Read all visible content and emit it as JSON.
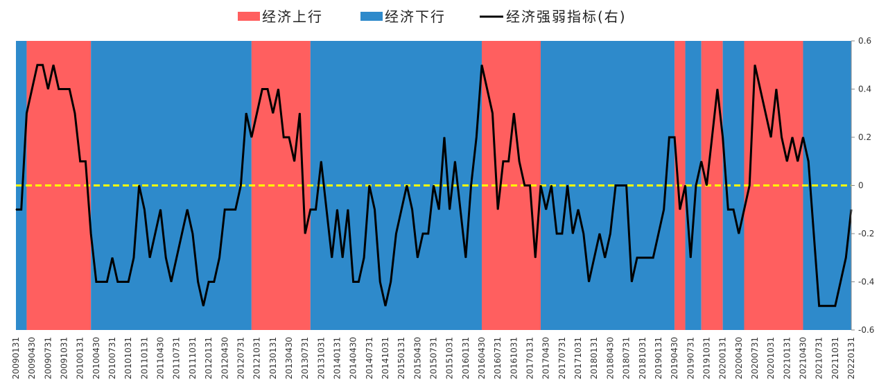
{
  "chart_data": {
    "type": "line",
    "legend": {
      "placement": "top-center",
      "items": [
        {
          "label": "经济上行",
          "kind": "band",
          "color": "#FF5F5F"
        },
        {
          "label": "经济下行",
          "kind": "band",
          "color": "#2E8ACB"
        },
        {
          "label": "经济强弱指标(右)",
          "kind": "line",
          "color": "#000000"
        }
      ]
    },
    "y_axis": {
      "side": "right",
      "ylim": [
        -0.6,
        0.6
      ],
      "ticks": [
        "-0.6",
        "-0.4",
        "-0.2",
        "0",
        "0.2",
        "0.4",
        "0.6"
      ],
      "tick_values": [
        -0.6,
        -0.4,
        -0.2,
        0,
        0.2,
        0.4,
        0.6
      ]
    },
    "reference_line": {
      "y": 0,
      "color": "#FFFF00",
      "style": "dashed"
    },
    "x_tick_labels": [
      "20090131",
      "20090430",
      "20090731",
      "20091031",
      "20100131",
      "20100430",
      "20100731",
      "20101031",
      "20110131",
      "20110430",
      "20110731",
      "20111031",
      "20120131",
      "20120430",
      "20120731",
      "20121031",
      "20130131",
      "20130430",
      "20130731",
      "20131031",
      "20140131",
      "20140430",
      "20140731",
      "20141031",
      "20150131",
      "20150430",
      "20150731",
      "20151031",
      "20160131",
      "20160430",
      "20160731",
      "20161031",
      "20170131",
      "20170430",
      "20170731",
      "20171031",
      "20180131",
      "20180430",
      "20180731",
      "20181031",
      "20190131",
      "20190430",
      "20190731",
      "20191031",
      "20200131",
      "20200430",
      "20200731",
      "20201031",
      "20210131",
      "20210430",
      "20210731",
      "20211031",
      "20220131"
    ],
    "x_start": "2009-01",
    "x_end": "2022-01",
    "bands": [
      {
        "start": "2009-01",
        "end": "2009-03",
        "state": "down"
      },
      {
        "start": "2009-03",
        "end": "2010-03",
        "state": "up"
      },
      {
        "start": "2010-03",
        "end": "2012-09",
        "state": "down"
      },
      {
        "start": "2012-09",
        "end": "2013-08",
        "state": "up"
      },
      {
        "start": "2013-08",
        "end": "2016-04",
        "state": "down"
      },
      {
        "start": "2016-04",
        "end": "2017-03",
        "state": "up"
      },
      {
        "start": "2017-03",
        "end": "2019-04",
        "state": "down"
      },
      {
        "start": "2019-04",
        "end": "2019-06",
        "state": "up"
      },
      {
        "start": "2019-06",
        "end": "2019-09",
        "state": "down"
      },
      {
        "start": "2019-09",
        "end": "2020-01",
        "state": "up"
      },
      {
        "start": "2020-01",
        "end": "2020-05",
        "state": "down"
      },
      {
        "start": "2020-05",
        "end": "2021-04",
        "state": "up"
      },
      {
        "start": "2021-04",
        "end": "2022-01",
        "state": "down"
      }
    ],
    "series": [
      {
        "name": "经济强弱指标(右)",
        "color": "#000000",
        "points": [
          [
            "2009-01",
            -0.1
          ],
          [
            "2009-02",
            -0.1
          ],
          [
            "2009-03",
            0.3
          ],
          [
            "2009-04",
            0.4
          ],
          [
            "2009-05",
            0.5
          ],
          [
            "2009-06",
            0.5
          ],
          [
            "2009-07",
            0.4
          ],
          [
            "2009-08",
            0.5
          ],
          [
            "2009-09",
            0.4
          ],
          [
            "2009-10",
            0.4
          ],
          [
            "2009-11",
            0.4
          ],
          [
            "2009-12",
            0.3
          ],
          [
            "2010-01",
            0.1
          ],
          [
            "2010-02",
            0.1
          ],
          [
            "2010-03",
            -0.2
          ],
          [
            "2010-04",
            -0.4
          ],
          [
            "2010-05",
            -0.4
          ],
          [
            "2010-06",
            -0.4
          ],
          [
            "2010-07",
            -0.3
          ],
          [
            "2010-08",
            -0.4
          ],
          [
            "2010-09",
            -0.4
          ],
          [
            "2010-10",
            -0.4
          ],
          [
            "2010-11",
            -0.3
          ],
          [
            "2010-12",
            0.0
          ],
          [
            "2011-01",
            -0.1
          ],
          [
            "2011-02",
            -0.3
          ],
          [
            "2011-03",
            -0.2
          ],
          [
            "2011-04",
            -0.1
          ],
          [
            "2011-05",
            -0.3
          ],
          [
            "2011-06",
            -0.4
          ],
          [
            "2011-07",
            -0.3
          ],
          [
            "2011-08",
            -0.2
          ],
          [
            "2011-09",
            -0.1
          ],
          [
            "2011-10",
            -0.2
          ],
          [
            "2011-11",
            -0.4
          ],
          [
            "2011-12",
            -0.5
          ],
          [
            "2012-01",
            -0.4
          ],
          [
            "2012-02",
            -0.4
          ],
          [
            "2012-03",
            -0.3
          ],
          [
            "2012-04",
            -0.1
          ],
          [
            "2012-05",
            -0.1
          ],
          [
            "2012-06",
            -0.1
          ],
          [
            "2012-07",
            0.0
          ],
          [
            "2012-08",
            0.3
          ],
          [
            "2012-09",
            0.2
          ],
          [
            "2012-10",
            0.3
          ],
          [
            "2012-11",
            0.4
          ],
          [
            "2012-12",
            0.4
          ],
          [
            "2013-01",
            0.3
          ],
          [
            "2013-02",
            0.4
          ],
          [
            "2013-03",
            0.2
          ],
          [
            "2013-04",
            0.2
          ],
          [
            "2013-05",
            0.1
          ],
          [
            "2013-06",
            0.3
          ],
          [
            "2013-07",
            -0.2
          ],
          [
            "2013-08",
            -0.1
          ],
          [
            "2013-09",
            -0.1
          ],
          [
            "2013-10",
            0.1
          ],
          [
            "2013-11",
            -0.1
          ],
          [
            "2013-12",
            -0.3
          ],
          [
            "2014-01",
            -0.1
          ],
          [
            "2014-02",
            -0.3
          ],
          [
            "2014-03",
            -0.1
          ],
          [
            "2014-04",
            -0.4
          ],
          [
            "2014-05",
            -0.4
          ],
          [
            "2014-06",
            -0.3
          ],
          [
            "2014-07",
            0.0
          ],
          [
            "2014-08",
            -0.1
          ],
          [
            "2014-09",
            -0.4
          ],
          [
            "2014-10",
            -0.5
          ],
          [
            "2014-11",
            -0.4
          ],
          [
            "2014-12",
            -0.2
          ],
          [
            "2015-01",
            -0.1
          ],
          [
            "2015-02",
            0.0
          ],
          [
            "2015-03",
            -0.1
          ],
          [
            "2015-04",
            -0.3
          ],
          [
            "2015-05",
            -0.2
          ],
          [
            "2015-06",
            -0.2
          ],
          [
            "2015-07",
            0.0
          ],
          [
            "2015-08",
            -0.1
          ],
          [
            "2015-09",
            0.2
          ],
          [
            "2015-10",
            -0.1
          ],
          [
            "2015-11",
            0.1
          ],
          [
            "2015-12",
            -0.1
          ],
          [
            "2016-01",
            -0.3
          ],
          [
            "2016-02",
            0.0
          ],
          [
            "2016-03",
            0.2
          ],
          [
            "2016-04",
            0.5
          ],
          [
            "2016-05",
            0.4
          ],
          [
            "2016-06",
            0.3
          ],
          [
            "2016-07",
            -0.1
          ],
          [
            "2016-08",
            0.1
          ],
          [
            "2016-09",
            0.1
          ],
          [
            "2016-10",
            0.3
          ],
          [
            "2016-11",
            0.1
          ],
          [
            "2016-12",
            0.0
          ],
          [
            "2017-01",
            0.0
          ],
          [
            "2017-02",
            -0.3
          ],
          [
            "2017-03",
            0.0
          ],
          [
            "2017-04",
            -0.1
          ],
          [
            "2017-05",
            0.0
          ],
          [
            "2017-06",
            -0.2
          ],
          [
            "2017-07",
            -0.2
          ],
          [
            "2017-08",
            0.0
          ],
          [
            "2017-09",
            -0.2
          ],
          [
            "2017-10",
            -0.1
          ],
          [
            "2017-11",
            -0.2
          ],
          [
            "2017-12",
            -0.4
          ],
          [
            "2018-01",
            -0.3
          ],
          [
            "2018-02",
            -0.2
          ],
          [
            "2018-03",
            -0.3
          ],
          [
            "2018-04",
            -0.2
          ],
          [
            "2018-05",
            0.0
          ],
          [
            "2018-06",
            0.0
          ],
          [
            "2018-07",
            0.0
          ],
          [
            "2018-08",
            -0.4
          ],
          [
            "2018-09",
            -0.3
          ],
          [
            "2018-10",
            -0.3
          ],
          [
            "2018-11",
            -0.3
          ],
          [
            "2018-12",
            -0.3
          ],
          [
            "2019-01",
            -0.2
          ],
          [
            "2019-02",
            -0.1
          ],
          [
            "2019-03",
            0.2
          ],
          [
            "2019-04",
            0.2
          ],
          [
            "2019-05",
            -0.1
          ],
          [
            "2019-06",
            0.0
          ],
          [
            "2019-07",
            -0.3
          ],
          [
            "2019-08",
            0.0
          ],
          [
            "2019-09",
            0.1
          ],
          [
            "2019-10",
            0.0
          ],
          [
            "2019-11",
            0.2
          ],
          [
            "2019-12",
            0.4
          ],
          [
            "2020-01",
            0.2
          ],
          [
            "2020-02",
            -0.1
          ],
          [
            "2020-03",
            -0.1
          ],
          [
            "2020-04",
            -0.2
          ],
          [
            "2020-05",
            -0.1
          ],
          [
            "2020-06",
            0.0
          ],
          [
            "2020-07",
            0.5
          ],
          [
            "2020-08",
            0.4
          ],
          [
            "2020-09",
            0.3
          ],
          [
            "2020-10",
            0.2
          ],
          [
            "2020-11",
            0.4
          ],
          [
            "2020-12",
            0.2
          ],
          [
            "2021-01",
            0.1
          ],
          [
            "2021-02",
            0.2
          ],
          [
            "2021-03",
            0.1
          ],
          [
            "2021-04",
            0.2
          ],
          [
            "2021-05",
            0.1
          ],
          [
            "2021-06",
            -0.2
          ],
          [
            "2021-07",
            -0.5
          ],
          [
            "2021-08",
            -0.5
          ],
          [
            "2021-09",
            -0.5
          ],
          [
            "2021-10",
            -0.5
          ],
          [
            "2021-11",
            -0.4
          ],
          [
            "2021-12",
            -0.3
          ],
          [
            "2022-01",
            -0.1
          ]
        ]
      }
    ]
  }
}
